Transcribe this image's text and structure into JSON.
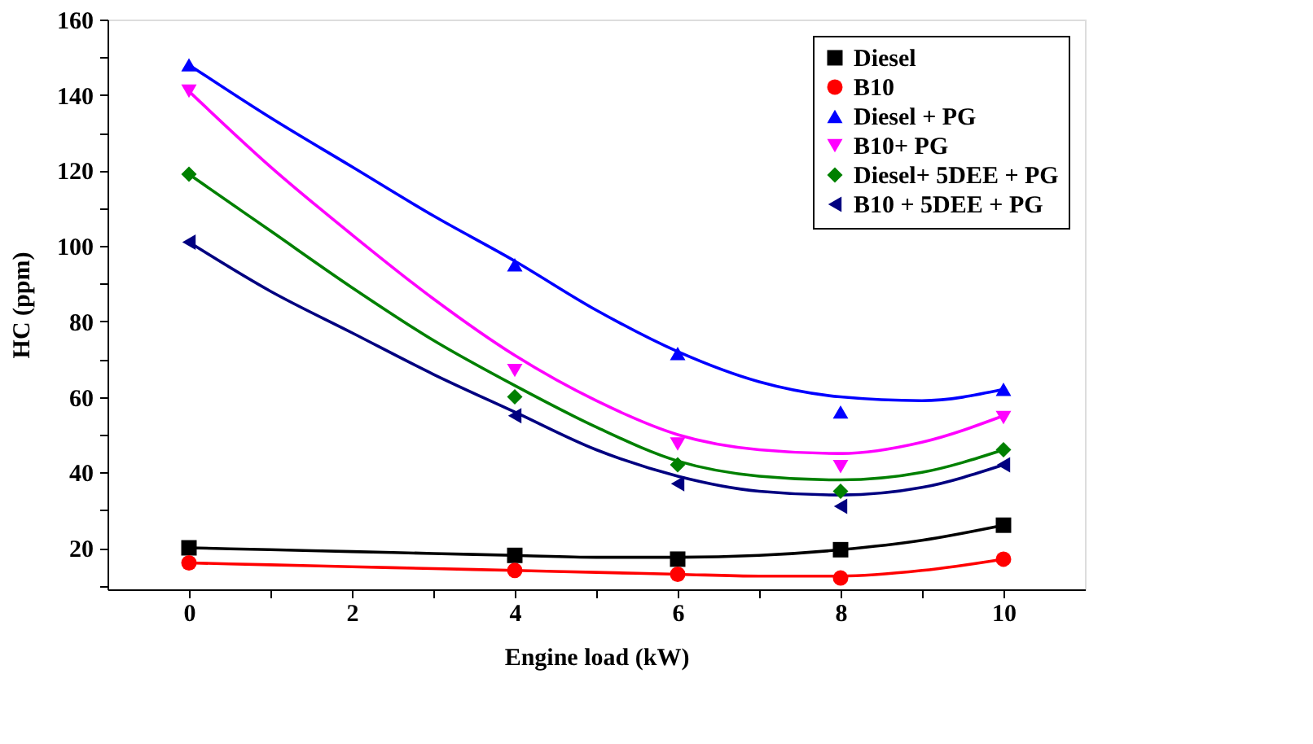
{
  "chart_data": {
    "type": "scatter",
    "xlabel": "Engine load (kW)",
    "ylabel": "HC (ppm)",
    "xlim": [
      -1,
      11
    ],
    "ylim": [
      9,
      160
    ],
    "xticks": [
      0,
      {
        "value": 1,
        "label": null
      },
      2,
      {
        "value": 3,
        "label": null
      },
      4,
      {
        "value": 5,
        "label": null
      },
      6,
      {
        "value": 7,
        "label": null
      },
      8,
      {
        "value": 9,
        "label": null
      },
      10
    ],
    "yticks": [
      {
        "value": 10,
        "label": null
      },
      20,
      {
        "value": 30,
        "label": null
      },
      40,
      {
        "value": 50,
        "label": null
      },
      60,
      {
        "value": 70,
        "label": null
      },
      80,
      {
        "value": 90,
        "label": null
      },
      100,
      {
        "value": 110,
        "label": null
      },
      120,
      {
        "value": 130,
        "label": null
      },
      140,
      {
        "value": 150,
        "label": null
      },
      160
    ],
    "grid": false,
    "legend": "top right",
    "x": [
      0,
      4,
      6,
      8,
      10
    ],
    "series": [
      {
        "name": "Diesel",
        "color": "#000000",
        "marker": "square",
        "values": [
          20,
          18,
          17,
          19.5,
          26
        ]
      },
      {
        "name": "B10",
        "color": "#ff0000",
        "marker": "circle",
        "values": [
          16,
          14,
          13,
          12,
          17
        ]
      },
      {
        "name": "Diesel + PG",
        "color": "#0000ff",
        "marker": "triangle",
        "values": [
          148,
          95,
          71.5,
          56,
          62
        ]
      },
      {
        "name": "B10+ PG",
        "color": "#ff00ff",
        "marker": "triangle-down",
        "values": [
          141,
          67,
          47.5,
          41.5,
          54.5
        ]
      },
      {
        "name": "Diesel+ 5DEE + PG",
        "color": "#008000",
        "marker": "diamond",
        "values": [
          119,
          60,
          42,
          35,
          46
        ]
      },
      {
        "name": "B10 + 5DEE + PG",
        "color": "#000080",
        "marker": "triangle-left",
        "values": [
          101,
          55,
          37,
          31,
          42
        ]
      },
      {
        "type": "line",
        "color": "#000000",
        "x": [
          0,
          1,
          2,
          3,
          4,
          5,
          6,
          7,
          8,
          9,
          10
        ],
        "values": [
          20,
          19.5,
          19,
          18.5,
          18,
          17.5,
          17.5,
          18,
          19.5,
          22,
          26
        ]
      },
      {
        "type": "line",
        "color": "#ff0000",
        "x": [
          0,
          1,
          2,
          3,
          4,
          5,
          6,
          7,
          8,
          9,
          10
        ],
        "values": [
          16,
          15.5,
          15,
          14.5,
          14,
          13.5,
          13,
          12.5,
          12.5,
          14,
          17
        ]
      },
      {
        "type": "line",
        "color": "#0000ff",
        "x": [
          0,
          1,
          2,
          3,
          4,
          5,
          6,
          7,
          8,
          9,
          10
        ],
        "values": [
          148,
          134,
          121,
          108,
          96,
          83,
          72,
          64,
          60,
          59,
          62
        ]
      },
      {
        "type": "line",
        "color": "#ff00ff",
        "x": [
          0,
          1,
          2,
          3,
          4,
          5,
          6,
          7,
          8,
          9,
          10
        ],
        "values": [
          141,
          121,
          103,
          86,
          71,
          59,
          50,
          46,
          45,
          48,
          55
        ]
      },
      {
        "type": "line",
        "color": "#008000",
        "x": [
          0,
          1,
          2,
          3,
          4,
          5,
          6,
          7,
          8,
          9,
          10
        ],
        "values": [
          119,
          104,
          89,
          75,
          63,
          52,
          43,
          39,
          38,
          40,
          46
        ]
      },
      {
        "type": "line",
        "color": "#000080",
        "x": [
          0,
          1,
          2,
          3,
          4,
          5,
          6,
          7,
          8,
          9,
          10
        ],
        "values": [
          101,
          88,
          77,
          66,
          56,
          46,
          39,
          35,
          34,
          36,
          42
        ]
      }
    ]
  }
}
